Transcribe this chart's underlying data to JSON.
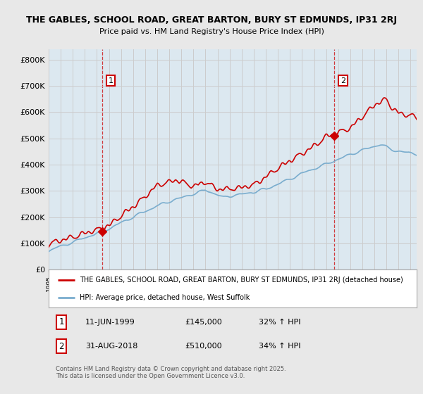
{
  "title1": "THE GABLES, SCHOOL ROAD, GREAT BARTON, BURY ST EDMUNDS, IP31 2RJ",
  "title2": "Price paid vs. HM Land Registry's House Price Index (HPI)",
  "ylabel_ticks": [
    "£0",
    "£100K",
    "£200K",
    "£300K",
    "£400K",
    "£500K",
    "£600K",
    "£700K",
    "£800K"
  ],
  "ytick_vals": [
    0,
    100000,
    200000,
    300000,
    400000,
    500000,
    600000,
    700000,
    800000
  ],
  "ylim": [
    0,
    840000
  ],
  "sale1": {
    "date_label": "1",
    "x_year": 1999.45,
    "price": 145000,
    "text": "11-JUN-1999",
    "amount": "£145,000",
    "pct": "32% ↑ HPI"
  },
  "sale2": {
    "date_label": "2",
    "x_year": 2018.67,
    "price": 510000,
    "text": "31-AUG-2018",
    "amount": "£510,000",
    "pct": "34% ↑ HPI"
  },
  "red_line_color": "#cc0000",
  "blue_line_color": "#7aadce",
  "grid_color": "#cccccc",
  "background_color": "#e8e8e8",
  "plot_bg_color": "#dce8f0",
  "legend_bg_color": "#ffffff",
  "legend_label_red": "THE GABLES, SCHOOL ROAD, GREAT BARTON, BURY ST EDMUNDS, IP31 2RJ (detached house)",
  "legend_label_blue": "HPI: Average price, detached house, West Suffolk",
  "footnote": "Contains HM Land Registry data © Crown copyright and database right 2025.\nThis data is licensed under the Open Government Licence v3.0.",
  "xmin": 1995.0,
  "xmax": 2025.5
}
